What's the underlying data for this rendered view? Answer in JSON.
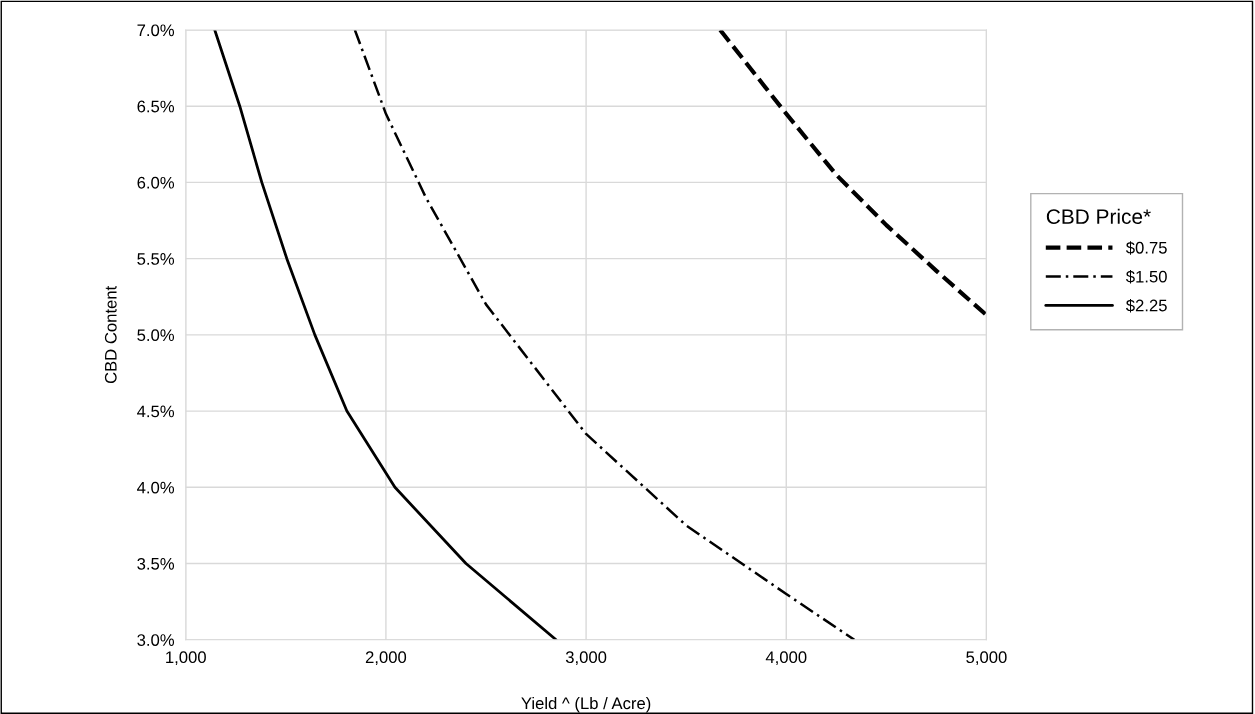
{
  "chart_data": {
    "type": "line",
    "xlabel": "Yield ^ (Lb / Acre)",
    "ylabel": "CBD Content",
    "legend_title": "CBD Price*",
    "series": [
      {
        "name": "$0.75",
        "color": "#000000",
        "line_style": "dashed",
        "x": [
          3670,
          4000,
          4250,
          4500,
          4750,
          5000
        ],
        "values": [
          7.0,
          6.45,
          6.05,
          5.72,
          5.42,
          5.13
        ]
      },
      {
        "name": "$1.50",
        "color": "#000000",
        "line_style": "dashdot",
        "x": [
          1845,
          2000,
          2200,
          2500,
          3000,
          3500,
          4000,
          4340
        ],
        "values": [
          7.0,
          6.45,
          5.9,
          5.2,
          4.35,
          3.75,
          3.3,
          3.0
        ]
      },
      {
        "name": "$2.25",
        "color": "#000000",
        "line_style": "solid",
        "x": [
          1145,
          1270,
          1380,
          1505,
          1645,
          1805,
          2045,
          2400,
          2850
        ],
        "values": [
          7.0,
          6.5,
          6.0,
          5.5,
          5.0,
          4.5,
          4.0,
          3.5,
          3.0
        ]
      }
    ],
    "xlim": [
      1000,
      5000
    ],
    "xticks": [
      {
        "value": 1000,
        "label": "1,000"
      },
      {
        "value": 2000,
        "label": "2,000"
      },
      {
        "value": 3000,
        "label": "3,000"
      },
      {
        "value": 4000,
        "label": "4,000"
      },
      {
        "value": 5000,
        "label": "5,000"
      }
    ],
    "ylim": [
      3.0,
      7.0
    ],
    "yticks": [
      {
        "value": 3.0,
        "label": "3.0%"
      },
      {
        "value": 3.5,
        "label": "3.5%"
      },
      {
        "value": 4.0,
        "label": "4.0%"
      },
      {
        "value": 4.5,
        "label": "4.5%"
      },
      {
        "value": 5.0,
        "label": "5.0%"
      },
      {
        "value": 5.5,
        "label": "5.5%"
      },
      {
        "value": 6.0,
        "label": "6.0%"
      },
      {
        "value": 6.5,
        "label": "6.5%"
      },
      {
        "value": 7.0,
        "label": "7.0%"
      }
    ],
    "grid": true,
    "legend": "right",
    "marker": "none"
  }
}
